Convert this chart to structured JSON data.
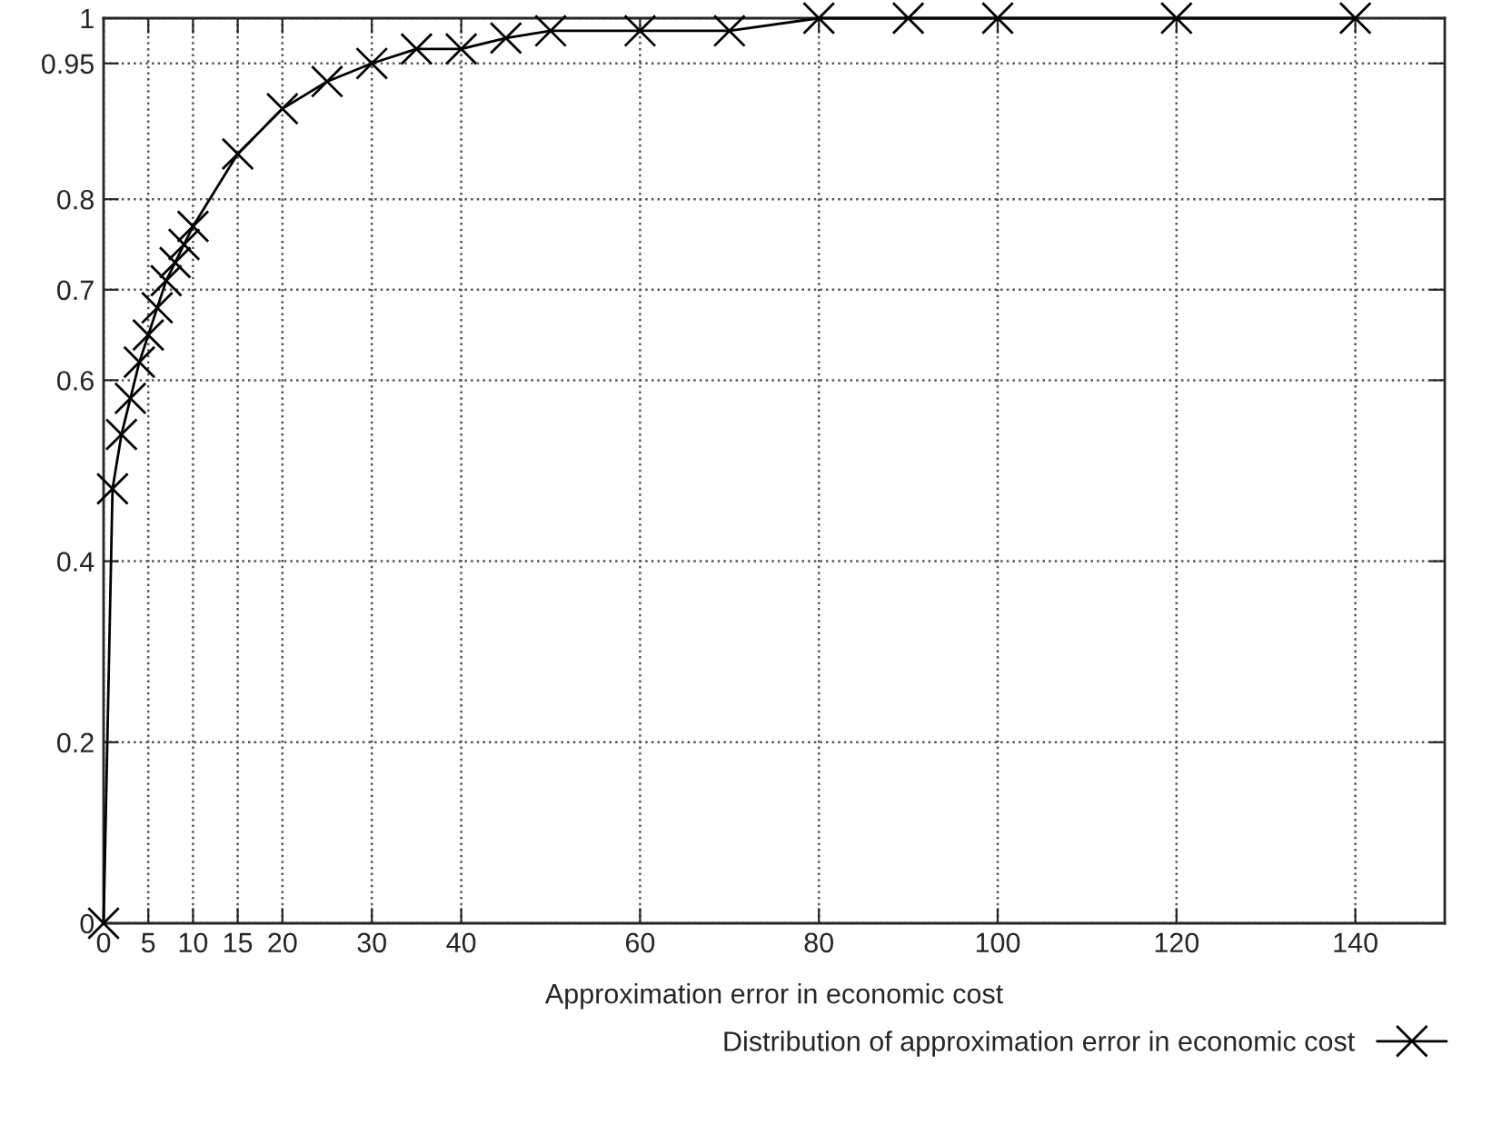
{
  "chart_data": {
    "type": "line",
    "xlabel": "Approximation error in economic cost",
    "x": [
      0,
      1,
      2,
      3,
      4,
      5,
      6,
      7,
      8,
      9,
      10,
      15,
      20,
      25,
      30,
      35,
      40,
      45,
      50,
      60,
      70,
      80,
      90,
      100,
      120,
      140
    ],
    "series": [
      {
        "name": "Distribution of approximation error in economic cost",
        "color": "#000000",
        "values": [
          0,
          0.48,
          0.54,
          0.58,
          0.62,
          0.65,
          0.68,
          0.71,
          0.73,
          0.75,
          0.77,
          0.85,
          0.9,
          0.93,
          0.95,
          0.966,
          0.966,
          0.978,
          0.986,
          0.986,
          0.986,
          1,
          1,
          1,
          1,
          1
        ]
      }
    ],
    "xlim": [
      0,
      150
    ],
    "xticks": [
      0,
      5,
      10,
      15,
      20,
      30,
      40,
      60,
      80,
      100,
      120,
      140
    ],
    "ylim": [
      0,
      1
    ],
    "yticks": [
      0,
      0.2,
      0.4,
      0.6,
      0.7,
      0.8,
      0.95,
      1
    ],
    "grid": true,
    "legend": "bottom right",
    "marker": "cross",
    "line_style": "solid"
  }
}
